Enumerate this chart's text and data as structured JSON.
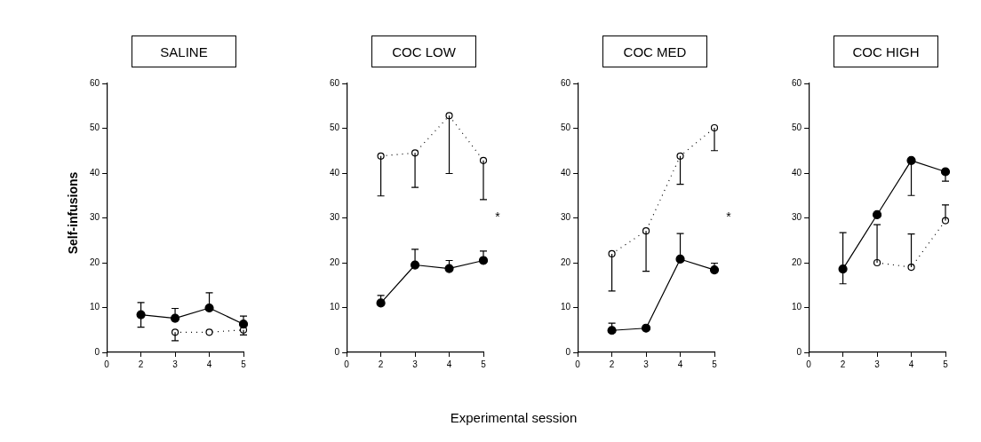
{
  "chart_data": [
    {
      "type": "line",
      "title": "SALINE",
      "ylabel": "Self-infusions",
      "categories": [
        "0",
        "2",
        "3",
        "4",
        "5"
      ],
      "ylim": [
        0,
        60
      ],
      "yticks": [
        0,
        10,
        20,
        30,
        40,
        50,
        60
      ],
      "grid": false,
      "legend": false,
      "marker": "circle",
      "series": [
        {
          "color": "#000000",
          "line_style": "solid",
          "values": [
            null,
            8.4,
            7.6,
            9.9,
            6.3
          ],
          "errors": [
            null,
            [
              5.6,
              11.1
            ],
            [
              7.6,
              9.8
            ],
            [
              9.9,
              13.3
            ],
            [
              6.3,
              8.1
            ]
          ]
        },
        {
          "color": "#000000",
          "line_style": "dotted",
          "values": [
            null,
            null,
            4.5,
            4.5,
            5.0
          ],
          "errors": [
            null,
            null,
            [
              2.6,
              4.5
            ],
            null,
            [
              3.9,
              5.0
            ]
          ]
        }
      ]
    },
    {
      "type": "line",
      "title": "COC LOW",
      "xlabel": "Experimental session",
      "categories": [
        "0",
        "2",
        "3",
        "4",
        "5"
      ],
      "ylim": [
        0,
        60
      ],
      "yticks": [
        0,
        10,
        20,
        30,
        40,
        50,
        60
      ],
      "grid": false,
      "legend": false,
      "marker": "circle",
      "annotations": [
        "*"
      ],
      "series": [
        {
          "color": "#000000",
          "line_style": "solid",
          "values": [
            null,
            11.0,
            19.5,
            18.7,
            20.5
          ],
          "errors": [
            null,
            [
              11.0,
              12.7
            ],
            [
              19.5,
              23.0
            ],
            [
              18.7,
              20.5
            ],
            [
              20.5,
              22.6
            ]
          ]
        },
        {
          "color": "#000000",
          "line_style": "dotted",
          "values": [
            null,
            43.8,
            44.5,
            52.8,
            42.8
          ],
          "errors": [
            null,
            [
              34.9,
              43.8
            ],
            [
              36.8,
              44.5
            ],
            [
              39.9,
              52.8
            ],
            [
              34.1,
              42.8
            ]
          ]
        }
      ]
    },
    {
      "type": "line",
      "title": "COC MED",
      "categories": [
        "0",
        "2",
        "3",
        "4",
        "5"
      ],
      "ylim": [
        0,
        60
      ],
      "yticks": [
        0,
        10,
        20,
        30,
        40,
        50,
        60
      ],
      "grid": false,
      "legend": false,
      "marker": "circle",
      "annotations": [
        "*"
      ],
      "series": [
        {
          "color": "#000000",
          "line_style": "solid",
          "values": [
            null,
            4.9,
            5.4,
            20.8,
            18.4
          ],
          "errors": [
            null,
            [
              4.9,
              6.5
            ],
            null,
            [
              20.8,
              26.5
            ],
            [
              18.4,
              19.9
            ]
          ]
        },
        {
          "color": "#000000",
          "line_style": "dotted",
          "values": [
            null,
            22.0,
            27.1,
            43.8,
            50.1
          ],
          "errors": [
            null,
            [
              13.7,
              22.0
            ],
            [
              18.1,
              27.1
            ],
            [
              37.5,
              43.8
            ],
            [
              45.0,
              50.1
            ]
          ]
        }
      ]
    },
    {
      "type": "line",
      "title": "COC HIGH",
      "categories": [
        "0",
        "2",
        "3",
        "4",
        "5"
      ],
      "ylim": [
        0,
        60
      ],
      "yticks": [
        0,
        10,
        20,
        30,
        40,
        50,
        60
      ],
      "grid": false,
      "legend": false,
      "marker": "circle",
      "series": [
        {
          "color": "#000000",
          "line_style": "solid",
          "values": [
            null,
            18.6,
            30.7,
            42.8,
            40.3
          ],
          "errors": [
            null,
            [
              15.3,
              26.7
            ],
            null,
            [
              35.0,
              42.8
            ],
            [
              38.2,
              40.3
            ]
          ]
        },
        {
          "color": "#000000",
          "line_style": "dotted",
          "values": [
            null,
            null,
            20.0,
            19.0,
            29.4
          ],
          "errors": [
            null,
            null,
            [
              20.0,
              28.5
            ],
            [
              19.0,
              26.4
            ],
            [
              29.4,
              32.9
            ]
          ]
        }
      ]
    }
  ]
}
